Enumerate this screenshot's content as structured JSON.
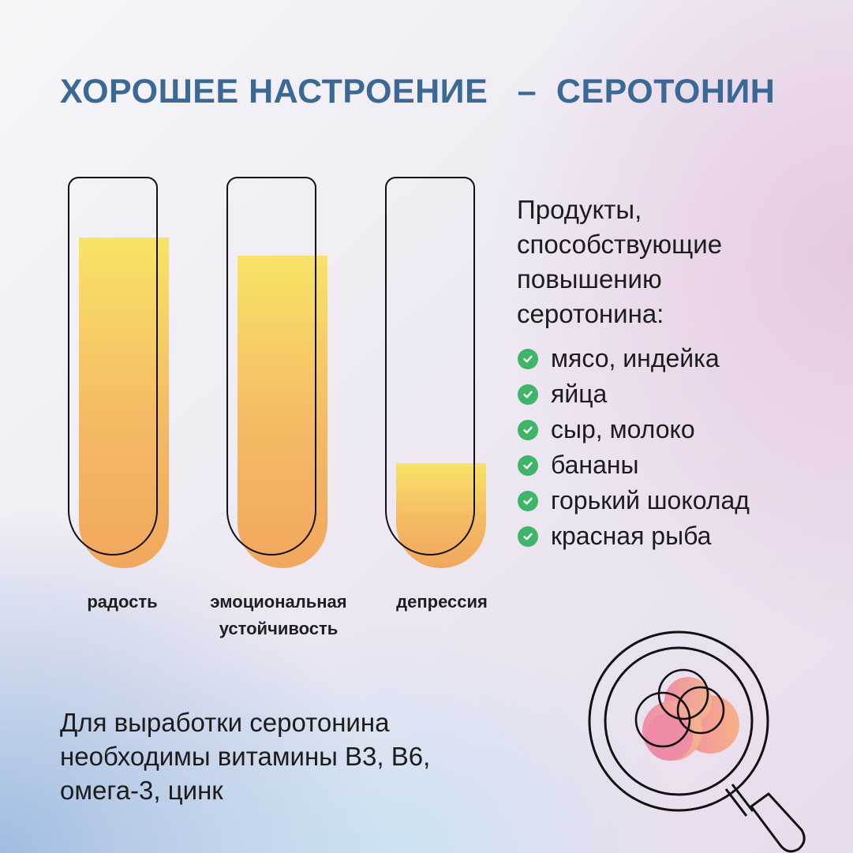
{
  "header": {
    "title": "ХОРОШЕЕ НАСТРОЕНИЕ   –  СЕРОТОНИН"
  },
  "tubes": [
    {
      "label": "радость",
      "level": 0.91
    },
    {
      "label": "эмоциональная\nустойчивость",
      "level": 0.86
    },
    {
      "label": "депрессия",
      "level": 0.29
    }
  ],
  "products": {
    "heading": "Продукты,\nспособствующие\nповышению\nсеротонина:",
    "items": [
      "мясо, индейка",
      "яйца",
      "сыр, молоко",
      "бананы",
      "горький шоколад",
      "красная рыба"
    ]
  },
  "footer": {
    "text": "Для выработки серотонина\nнеобходимы витамины B3, B6,\nомега-3, цинк"
  },
  "colors": {
    "title": "#3b6996",
    "check": "#3fb56a",
    "liquid_top": "#f8e367",
    "liquid_bottom": "#f1a75e"
  },
  "icons": {
    "check": "check-circle-icon",
    "illustration": "magnifier-cells-icon"
  }
}
